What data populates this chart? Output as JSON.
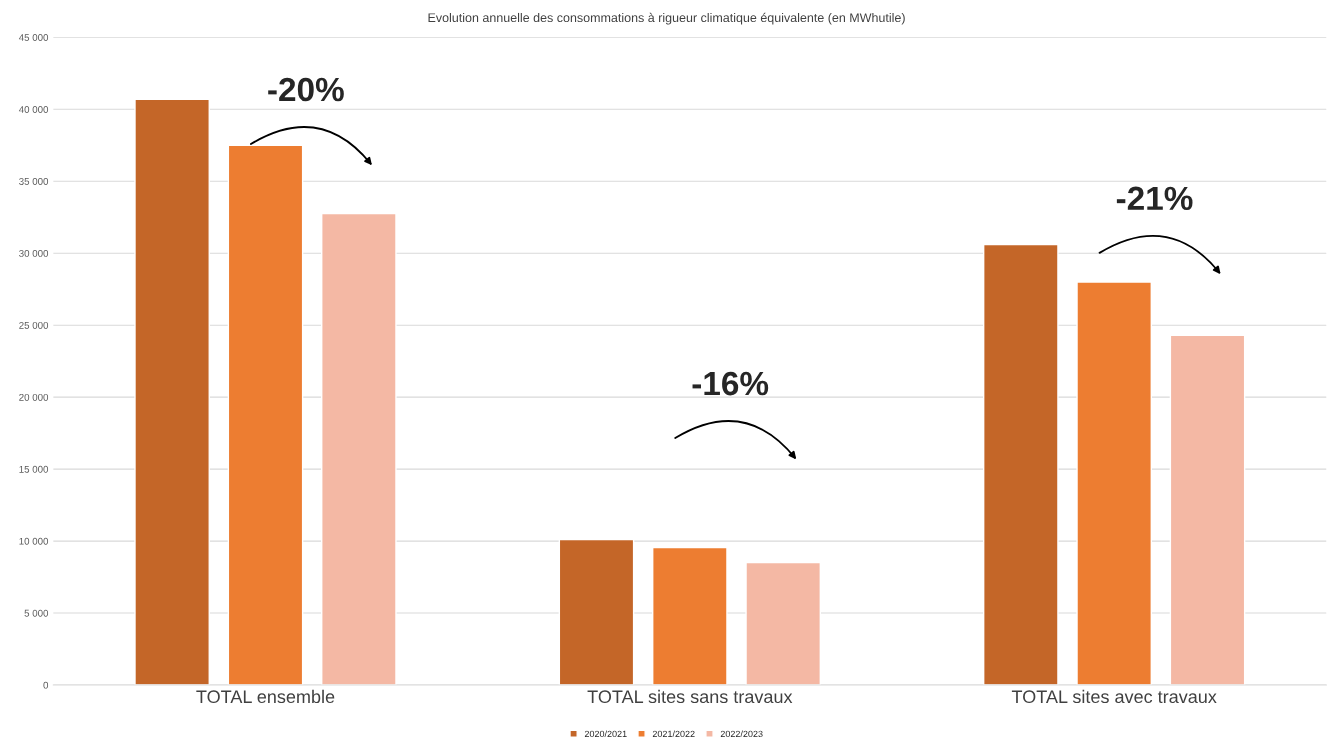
{
  "chart_data": {
    "type": "bar",
    "title": "Evolution annuelle des consommations à rigueur climatique équivalente (en MWhutile)",
    "categories": [
      "TOTAL ensemble",
      "TOTAL sites sans travaux",
      "TOTAL sites avec travaux"
    ],
    "series": [
      {
        "name": "2020/2021",
        "color": "#c46628",
        "values": [
          40700,
          10100,
          30600
        ]
      },
      {
        "name": "2021/2022",
        "color": "#ed7d31",
        "values": [
          37500,
          9550,
          28000
        ]
      },
      {
        "name": "2022/2023",
        "color": "#f4b8a4",
        "values": [
          32750,
          8500,
          24300
        ]
      }
    ],
    "ylim": [
      0,
      45000
    ],
    "yticks": [
      {
        "value": 0,
        "label": "0"
      },
      {
        "value": 5000,
        "label": "5 000"
      },
      {
        "value": 10000,
        "label": "10 000"
      },
      {
        "value": 15000,
        "label": "15 000"
      },
      {
        "value": 20000,
        "label": "20 000"
      },
      {
        "value": 25000,
        "label": "25 000"
      },
      {
        "value": 30000,
        "label": "30 000"
      },
      {
        "value": 35000,
        "label": "35 000"
      },
      {
        "value": 40000,
        "label": "40 000"
      },
      {
        "value": 45000,
        "label": "45 000"
      }
    ],
    "grid": "y",
    "legend": "bottom",
    "annotations": [
      "-20%",
      "-16%",
      "-21%"
    ]
  }
}
